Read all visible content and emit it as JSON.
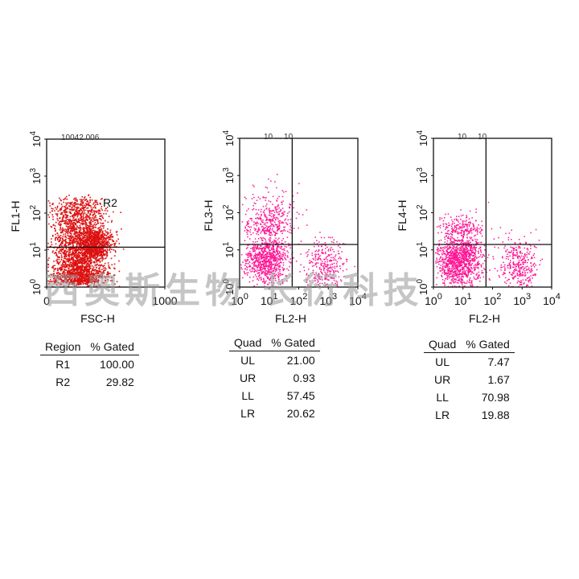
{
  "chart_data": [
    {
      "type": "scatter",
      "panel": "left",
      "xlabel": "FSC-H",
      "ylabel": "FL1-H",
      "x_scale": "linear",
      "y_scale": "log",
      "xlim": [
        0,
        1000
      ],
      "ylim": [
        1,
        10000
      ],
      "x_ticks": [
        "0",
        "1000"
      ],
      "y_ticks": [
        "10^0",
        "10^1",
        "10^2",
        "10^3",
        "10^4"
      ],
      "gate_line_y": 12,
      "region_label": "R2",
      "dot_color": "#dd1111",
      "top_label": "10042.006",
      "table": {
        "headers": [
          "Region",
          "% Gated"
        ],
        "rows": [
          [
            "R1",
            "100.00"
          ],
          [
            "R2",
            "29.82"
          ]
        ]
      }
    },
    {
      "type": "scatter",
      "panel": "middle",
      "xlabel": "FL2-H",
      "ylabel": "FL3-H",
      "x_scale": "log",
      "y_scale": "log",
      "xlim": [
        1,
        10000
      ],
      "ylim": [
        1,
        10000
      ],
      "x_ticks": [
        "10^0",
        "10^1",
        "10^2",
        "10^3",
        "10^4"
      ],
      "y_ticks": [
        "10^0",
        "10^1",
        "10^2",
        "10^3",
        "10^4"
      ],
      "quad_x": 60,
      "quad_y": 14,
      "dot_color": "#ff1493",
      "top_label": "10 ... 10",
      "table": {
        "headers": [
          "Quad",
          "% Gated"
        ],
        "rows": [
          [
            "UL",
            "21.00"
          ],
          [
            "UR",
            "0.93"
          ],
          [
            "LL",
            "57.45"
          ],
          [
            "LR",
            "20.62"
          ]
        ]
      }
    },
    {
      "type": "scatter",
      "panel": "right",
      "xlabel": "FL2-H",
      "ylabel": "FL4-H",
      "x_scale": "log",
      "y_scale": "log",
      "xlim": [
        1,
        10000
      ],
      "ylim": [
        1,
        10000
      ],
      "x_ticks": [
        "10^0",
        "10^1",
        "10^2",
        "10^3",
        "10^4"
      ],
      "y_ticks": [
        "10^0",
        "10^1",
        "10^2",
        "10^3",
        "10^4"
      ],
      "quad_x": 60,
      "quad_y": 14,
      "dot_color": "#ff1493",
      "top_label": "10 ... 10",
      "table": {
        "headers": [
          "Quad",
          "% Gated"
        ],
        "rows": [
          [
            "UL",
            "7.47"
          ],
          [
            "UR",
            "1.67"
          ],
          [
            "LL",
            "70.98"
          ],
          [
            "LR",
            "19.88"
          ]
        ]
      }
    }
  ],
  "watermark": "西奥斯生物 长衍科技"
}
